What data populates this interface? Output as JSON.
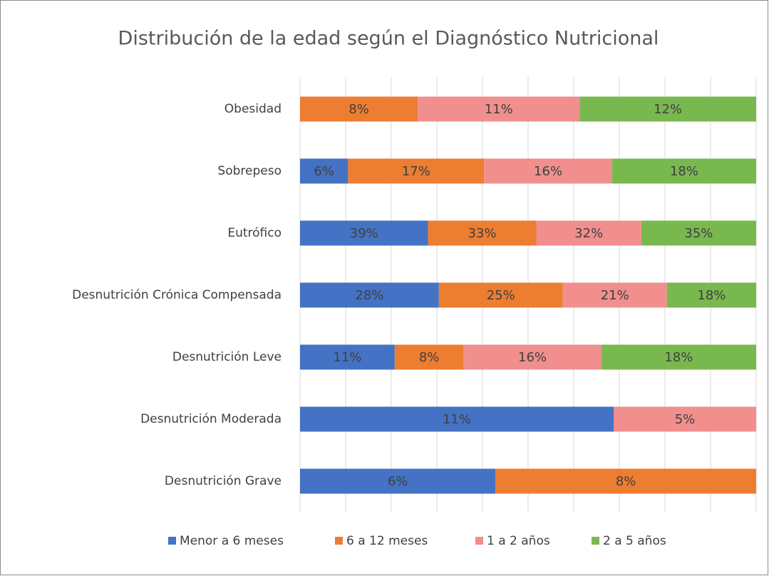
{
  "chart_data": {
    "type": "bar",
    "orientation": "horizontal",
    "stacking": "percent",
    "title": "Distribución de la edad según el Diagnóstico Nutricional",
    "categories": [
      "Obesidad",
      "Sobrepeso",
      "Eutrófico",
      "Desnutrición Crónica Compensada",
      "Desnutrición Leve",
      "Desnutrición Moderada",
      "Desnutrición Grave"
    ],
    "series": [
      {
        "name": "Menor a 6 meses",
        "color": "#4472c4",
        "values": [
          null,
          6,
          39,
          28,
          11,
          11,
          6
        ],
        "value_labels": [
          null,
          "6%",
          "39%",
          "28%",
          "11%",
          "11%",
          "6%"
        ]
      },
      {
        "name": "6 a 12 meses",
        "color": "#ed7d31",
        "values": [
          8,
          17,
          33,
          25,
          8,
          null,
          8
        ],
        "value_labels": [
          "8%",
          "17%",
          "33%",
          "25%",
          "8%",
          null,
          "8%"
        ]
      },
      {
        "name": "1 a 2 años",
        "color": "#f08f8d",
        "values": [
          11,
          16,
          32,
          21,
          16,
          5,
          null
        ],
        "value_labels": [
          "11%",
          "16%",
          "32%",
          "21%",
          "16%",
          "5%",
          null
        ]
      },
      {
        "name": "2 a 5 años",
        "color": "#79b84f",
        "values": [
          12,
          18,
          35,
          18,
          18,
          null,
          null
        ],
        "value_labels": [
          "12%",
          "18%",
          "35%",
          "18%",
          "18%",
          null,
          null
        ]
      }
    ],
    "xlim": [
      0,
      100
    ],
    "xticks": [
      0,
      10,
      20,
      30,
      40,
      50,
      60,
      70,
      80,
      90,
      100
    ],
    "grid": true,
    "legend": "bottom"
  }
}
